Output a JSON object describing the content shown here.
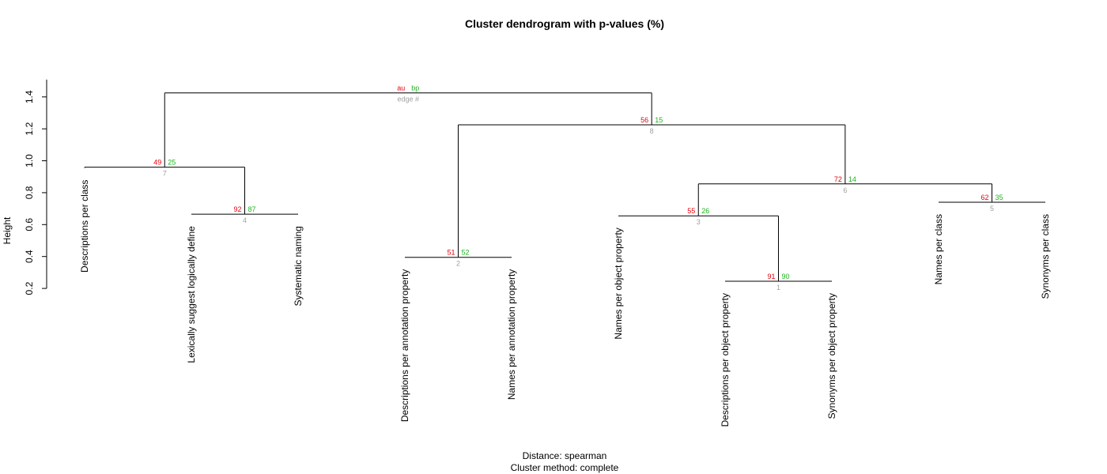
{
  "chart_data": {
    "type": "dendrogram",
    "title": "Cluster dendrogram with p-values (%)",
    "ylabel": "Height",
    "ylim": [
      0.2,
      1.5
    ],
    "yticks": [
      "0.2",
      "0.4",
      "0.6",
      "0.8",
      "1.0",
      "1.2",
      "1.4"
    ],
    "footer": [
      "Distance: spearman",
      "Cluster method: complete"
    ],
    "key": {
      "au": "au",
      "bp": "bp",
      "edge": "edge #"
    },
    "colors": {
      "au": "#e8000b",
      "bp": "#1db41d",
      "edge": "#a0a0a0",
      "line": "#000000"
    },
    "leaves": [
      "Descriptions per class",
      "Lexically suggest logically define",
      "Systematic naming",
      "Descriptions per annotation property",
      "Names per annotation property",
      "Names per object property",
      "Descriptions per object property",
      "Synonyms per object property",
      "Names per class",
      "Synonyms per class"
    ],
    "merges": [
      {
        "edge": "1",
        "left": "L7",
        "right": "L8",
        "height": 0.245,
        "au": "91",
        "bp": "90"
      },
      {
        "edge": "2",
        "left": "L4",
        "right": "L5",
        "height": 0.395,
        "au": "51",
        "bp": "52"
      },
      {
        "edge": "3",
        "left": "L6",
        "right": "E1",
        "height": 0.655,
        "au": "55",
        "bp": "26"
      },
      {
        "edge": "4",
        "left": "L2",
        "right": "L3",
        "height": 0.665,
        "au": "92",
        "bp": "87"
      },
      {
        "edge": "5",
        "left": "L9",
        "right": "L10",
        "height": 0.74,
        "au": "62",
        "bp": "35"
      },
      {
        "edge": "6",
        "left": "E3",
        "right": "E5",
        "height": 0.855,
        "au": "72",
        "bp": "14"
      },
      {
        "edge": "7",
        "left": "L1",
        "right": "E4",
        "height": 0.96,
        "au": "49",
        "bp": "25"
      },
      {
        "edge": "8",
        "left": "E2",
        "right": "E6",
        "height": 1.225,
        "au": "56",
        "bp": "15"
      },
      {
        "edge": "9",
        "left": "E7",
        "right": "E8",
        "height": 1.425,
        "au": "au",
        "bp": "bp",
        "edge_label": "edge #"
      }
    ],
    "leaf_tops": [
      0.955,
      0.665,
      0.665,
      0.395,
      0.395,
      0.655,
      0.245,
      0.245,
      0.74,
      0.74
    ],
    "leaf_order": [
      1,
      2,
      3,
      4,
      5,
      6,
      7,
      8,
      9,
      10
    ]
  }
}
